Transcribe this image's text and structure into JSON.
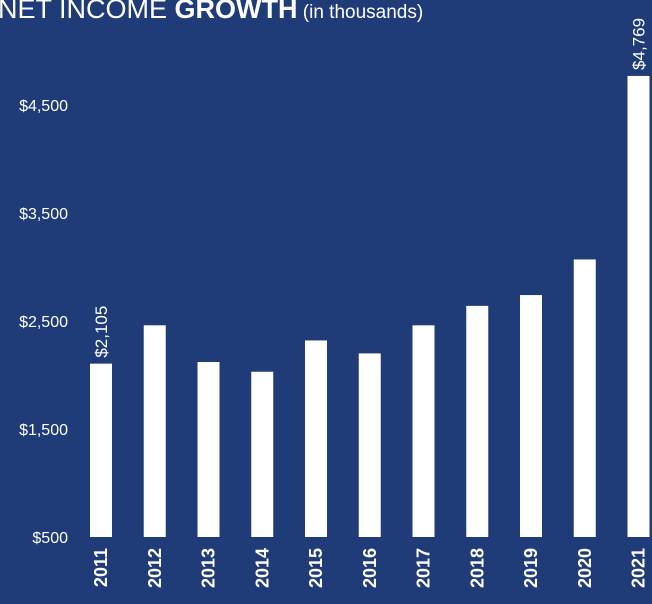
{
  "title": {
    "part1": "NET INCOME ",
    "part2": "GROWTH",
    "part3": " (in thousands)"
  },
  "colors": {
    "background": "#1f3b78",
    "bars": "#ffffff",
    "text": "#ffffff"
  },
  "chart_data": {
    "type": "bar",
    "title": "NET INCOME GROWTH (in thousands)",
    "categories": [
      "2011",
      "2012",
      "2013",
      "2014",
      "2015",
      "2016",
      "2017",
      "2018",
      "2019",
      "2020",
      "2021"
    ],
    "values": [
      2105,
      2460,
      2120,
      2030,
      2320,
      2200,
      2460,
      2640,
      2740,
      3070,
      4769
    ],
    "yticks": [
      500,
      1500,
      2500,
      3500,
      4500
    ],
    "ytick_labels": [
      "$500",
      "$1,500",
      "$2,500",
      "$3,500",
      "$4,500"
    ],
    "ylim": [
      500,
      4900
    ],
    "data_labels": [
      {
        "category": "2011",
        "label": "$2,105"
      },
      {
        "category": "2021",
        "label": "$4,769"
      }
    ],
    "grid": false,
    "legend": "none"
  }
}
